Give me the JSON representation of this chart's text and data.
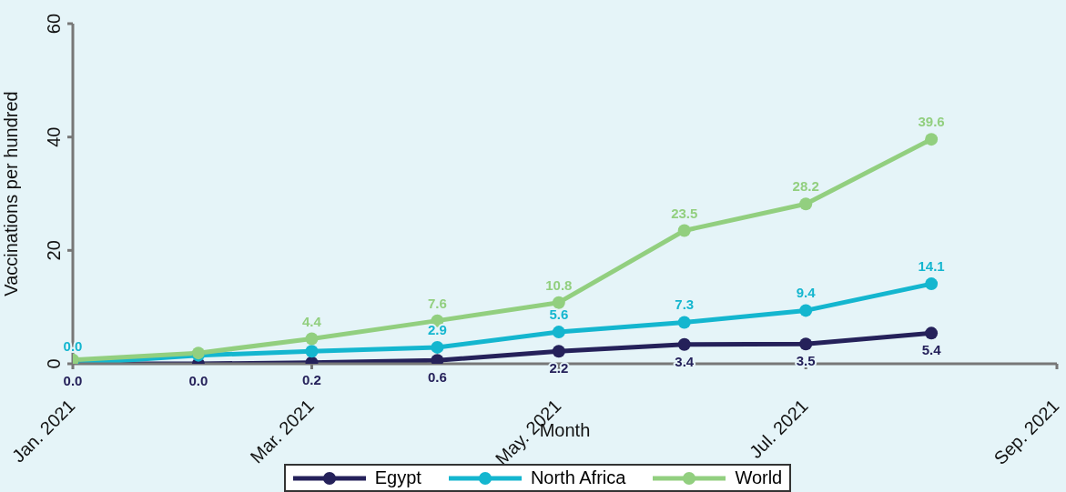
{
  "chart_data": {
    "type": "line",
    "xlabel": "Month",
    "ylabel": "Vaccinations per hundred",
    "x": [
      "2021-01",
      "2021-02",
      "2021-03",
      "2021-04",
      "2021-05",
      "2021-06",
      "2021-07",
      "2021-08"
    ],
    "xlim": [
      "2021-01",
      "2021-09"
    ],
    "xticks": [
      {
        "value": "2021-01",
        "label": "Jan. 2021"
      },
      {
        "value": "2021-03",
        "label": "Mar. 2021"
      },
      {
        "value": "2021-05",
        "label": "May. 2021"
      },
      {
        "value": "2021-07",
        "label": "Jul. 2021"
      },
      {
        "value": "2021-09",
        "label": "Sep. 2021"
      }
    ],
    "ylim": [
      0,
      60
    ],
    "yticks": [
      0,
      20,
      40,
      60
    ],
    "series": [
      {
        "name": "Egypt",
        "color": "#25215a",
        "values": [
          0.0,
          0.0,
          0.2,
          0.6,
          2.2,
          3.4,
          3.5,
          5.4
        ],
        "value_labels": [
          "0.0",
          "0.0",
          "0.2",
          "0.6",
          "2.2",
          "3.4",
          "3.5",
          "5.4"
        ]
      },
      {
        "name": "North Africa",
        "color": "#14b6cf",
        "values": [
          0.0,
          1.5,
          2.2,
          2.9,
          5.6,
          7.3,
          9.4,
          14.1
        ],
        "value_labels": [
          "0.0",
          null,
          null,
          "2.9",
          "5.6",
          "7.3",
          "9.4",
          "14.1"
        ]
      },
      {
        "name": "World",
        "color": "#92cf7f",
        "values": [
          0.7,
          1.9,
          4.4,
          7.6,
          10.8,
          23.5,
          28.2,
          39.6
        ],
        "value_labels": [
          null,
          null,
          "4.4",
          "7.6",
          "10.8",
          "23.5",
          "28.2",
          "39.6"
        ]
      }
    ],
    "marker": "circle",
    "line_style": "solid",
    "grid": false,
    "legend": "bottom"
  }
}
